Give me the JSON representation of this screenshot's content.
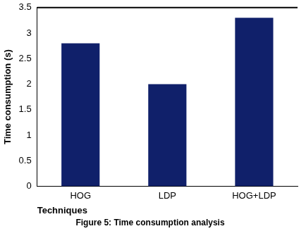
{
  "chart_data": {
    "type": "bar",
    "title": "Figure 5: Time consumption analysis",
    "x_label": "Techniques",
    "y_label": "Time consumption (s)",
    "categories": [
      "HOG",
      "LDP",
      "HOG+LDP"
    ],
    "values": [
      2.8,
      2.0,
      3.3
    ],
    "color": "#10206a",
    "ylim": [
      0,
      3.5
    ],
    "yticks": [
      0,
      0.5,
      1,
      1.5,
      2,
      2.5,
      3,
      3.5
    ],
    "grid": false
  }
}
